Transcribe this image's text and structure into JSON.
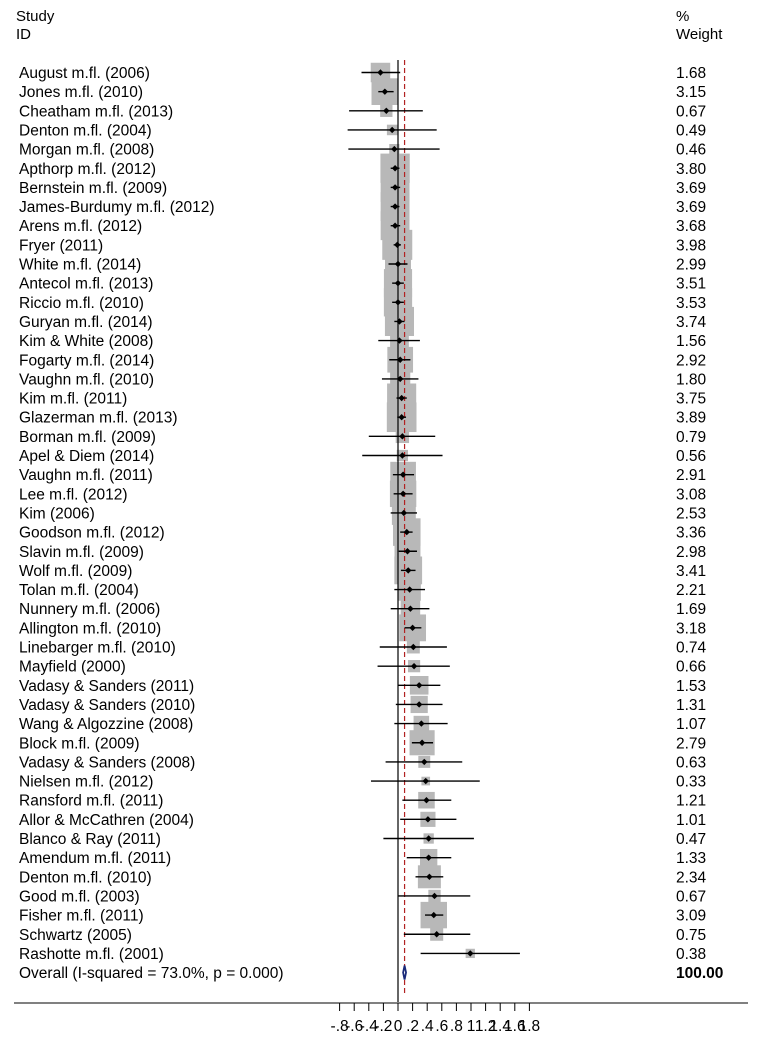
{
  "header": {
    "study_label": "Study",
    "id_label": "ID",
    "pct_label": "%",
    "weight_label": "Weight"
  },
  "chart_data": {
    "type": "forest",
    "xlim": [
      -0.8,
      1.8
    ],
    "x_ticks": [
      "-.8",
      "-.6",
      "-.4",
      "-.2",
      "0",
      ".2",
      ".4",
      ".6",
      ".8",
      "1",
      "1.2",
      "1.4",
      "1.6",
      "1.8"
    ],
    "null_line": 0,
    "overall_line": 0.09,
    "studies": [
      {
        "label": "August m.fl. (2006)",
        "es": -0.24,
        "lo": -0.5,
        "hi": 0.03,
        "weight": "1.68"
      },
      {
        "label": "Jones m.fl. (2010)",
        "es": -0.18,
        "lo": -0.27,
        "hi": -0.06,
        "weight": "3.15"
      },
      {
        "label": "Cheatham m.fl. (2013)",
        "es": -0.16,
        "lo": -0.67,
        "hi": 0.34,
        "weight": "0.67"
      },
      {
        "label": "Denton m.fl. (2004)",
        "es": -0.08,
        "lo": -0.69,
        "hi": 0.53,
        "weight": "0.49"
      },
      {
        "label": "Morgan m.fl. (2008)",
        "es": -0.05,
        "lo": -0.68,
        "hi": 0.57,
        "weight": "0.46"
      },
      {
        "label": "Apthorp m.fl. (2012)",
        "es": -0.04,
        "lo": -0.1,
        "hi": 0.02,
        "weight": "3.80"
      },
      {
        "label": "Bernstein m.fl. (2009)",
        "es": -0.04,
        "lo": -0.1,
        "hi": 0.03,
        "weight": "3.69"
      },
      {
        "label": "James-Burdumy m.fl. (2012)",
        "es": -0.04,
        "lo": -0.1,
        "hi": 0.02,
        "weight": "3.69"
      },
      {
        "label": "Arens m.fl. (2012)",
        "es": -0.04,
        "lo": -0.1,
        "hi": 0.03,
        "weight": "3.68"
      },
      {
        "label": "Fryer (2011)",
        "es": -0.01,
        "lo": -0.06,
        "hi": 0.04,
        "weight": "3.98"
      },
      {
        "label": "White m.fl. (2014)",
        "es": 0.0,
        "lo": -0.13,
        "hi": 0.13,
        "weight": "2.99"
      },
      {
        "label": "Antecol m.fl. (2013)",
        "es": 0.0,
        "lo": -0.08,
        "hi": 0.08,
        "weight": "3.51"
      },
      {
        "label": "Riccio m.fl. (2010)",
        "es": 0.0,
        "lo": -0.08,
        "hi": 0.08,
        "weight": "3.53"
      },
      {
        "label": "Guryan m.fl. (2014)",
        "es": 0.02,
        "lo": -0.05,
        "hi": 0.09,
        "weight": "3.74"
      },
      {
        "label": "Kim & White (2008)",
        "es": 0.02,
        "lo": -0.27,
        "hi": 0.3,
        "weight": "1.56"
      },
      {
        "label": "Fogarty m.fl. (2014)",
        "es": 0.03,
        "lo": -0.12,
        "hi": 0.17,
        "weight": "2.92"
      },
      {
        "label": "Vaughn m.fl. (2010)",
        "es": 0.03,
        "lo": -0.22,
        "hi": 0.28,
        "weight": "1.80"
      },
      {
        "label": "Kim m.fl. (2011)",
        "es": 0.05,
        "lo": -0.02,
        "hi": 0.12,
        "weight": "3.75"
      },
      {
        "label": "Glazerman m.fl. (2013)",
        "es": 0.05,
        "lo": -0.01,
        "hi": 0.11,
        "weight": "3.89"
      },
      {
        "label": "Borman m.fl. (2009)",
        "es": 0.06,
        "lo": -0.4,
        "hi": 0.51,
        "weight": "0.79"
      },
      {
        "label": "Apel & Diem (2014)",
        "es": 0.06,
        "lo": -0.49,
        "hi": 0.61,
        "weight": "0.56"
      },
      {
        "label": "Vaughn m.fl. (2011)",
        "es": 0.07,
        "lo": -0.07,
        "hi": 0.22,
        "weight": "2.91"
      },
      {
        "label": "Lee m.fl. (2012)",
        "es": 0.07,
        "lo": -0.06,
        "hi": 0.2,
        "weight": "3.08"
      },
      {
        "label": "Kim (2006)",
        "es": 0.08,
        "lo": -0.1,
        "hi": 0.26,
        "weight": "2.53"
      },
      {
        "label": "Goodson m.fl. (2012)",
        "es": 0.12,
        "lo": 0.03,
        "hi": 0.2,
        "weight": "3.36"
      },
      {
        "label": "Slavin m.fl. (2009)",
        "es": 0.13,
        "lo": 0.01,
        "hi": 0.26,
        "weight": "2.98"
      },
      {
        "label": "Wolf m.fl. (2009)",
        "es": 0.14,
        "lo": 0.04,
        "hi": 0.24,
        "weight": "3.41"
      },
      {
        "label": "Tolan m.fl. (2004)",
        "es": 0.16,
        "lo": -0.05,
        "hi": 0.37,
        "weight": "2.21"
      },
      {
        "label": "Nunnery m.fl. (2006)",
        "es": 0.17,
        "lo": -0.1,
        "hi": 0.43,
        "weight": "1.69"
      },
      {
        "label": "Allington m.fl. (2010)",
        "es": 0.2,
        "lo": 0.09,
        "hi": 0.32,
        "weight": "3.18"
      },
      {
        "label": "Linebarger m.fl. (2010)",
        "es": 0.21,
        "lo": -0.25,
        "hi": 0.67,
        "weight": "0.74"
      },
      {
        "label": "Mayfield (2000)",
        "es": 0.22,
        "lo": -0.28,
        "hi": 0.71,
        "weight": "0.66"
      },
      {
        "label": "Vadasy & Sanders (2011)",
        "es": 0.29,
        "lo": 0.0,
        "hi": 0.58,
        "weight": "1.53"
      },
      {
        "label": "Vadasy & Sanders (2010)",
        "es": 0.29,
        "lo": -0.03,
        "hi": 0.61,
        "weight": "1.31"
      },
      {
        "label": "Wang & Algozzine (2008)",
        "es": 0.32,
        "lo": -0.05,
        "hi": 0.68,
        "weight": "1.07"
      },
      {
        "label": "Block m.fl. (2009)",
        "es": 0.33,
        "lo": 0.19,
        "hi": 0.48,
        "weight": "2.79"
      },
      {
        "label": "Vadasy & Sanders (2008)",
        "es": 0.36,
        "lo": -0.17,
        "hi": 0.88,
        "weight": "0.63"
      },
      {
        "label": "Nielsen m.fl. (2012)",
        "es": 0.38,
        "lo": -0.37,
        "hi": 1.12,
        "weight": "0.33"
      },
      {
        "label": "Ransford m.fl. (2011)",
        "es": 0.39,
        "lo": 0.06,
        "hi": 0.73,
        "weight": "1.21"
      },
      {
        "label": "Allor & McCathren (2004)",
        "es": 0.41,
        "lo": 0.03,
        "hi": 0.8,
        "weight": "1.01"
      },
      {
        "label": "Blanco & Ray (2011)",
        "es": 0.42,
        "lo": -0.2,
        "hi": 1.04,
        "weight": "0.47"
      },
      {
        "label": "Amendum m.fl. (2011)",
        "es": 0.42,
        "lo": 0.12,
        "hi": 0.73,
        "weight": "1.33"
      },
      {
        "label": "Denton m.fl. (2010)",
        "es": 0.43,
        "lo": 0.24,
        "hi": 0.62,
        "weight": "2.34"
      },
      {
        "label": "Good m.fl. (2003)",
        "es": 0.5,
        "lo": 0.0,
        "hi": 0.99,
        "weight": "0.67"
      },
      {
        "label": "Fisher m.fl. (2011)",
        "es": 0.49,
        "lo": 0.37,
        "hi": 0.62,
        "weight": "3.09"
      },
      {
        "label": "Schwartz (2005)",
        "es": 0.53,
        "lo": 0.08,
        "hi": 0.99,
        "weight": "0.75"
      },
      {
        "label": "Rashotte m.fl. (2001)",
        "es": 0.99,
        "lo": 0.31,
        "hi": 1.67,
        "weight": "0.38"
      }
    ],
    "overall": {
      "label": "Overall  (I-squared = 73.0%, p = 0.000)",
      "es": 0.09,
      "lo": 0.07,
      "hi": 0.11,
      "weight": "100.00"
    }
  }
}
